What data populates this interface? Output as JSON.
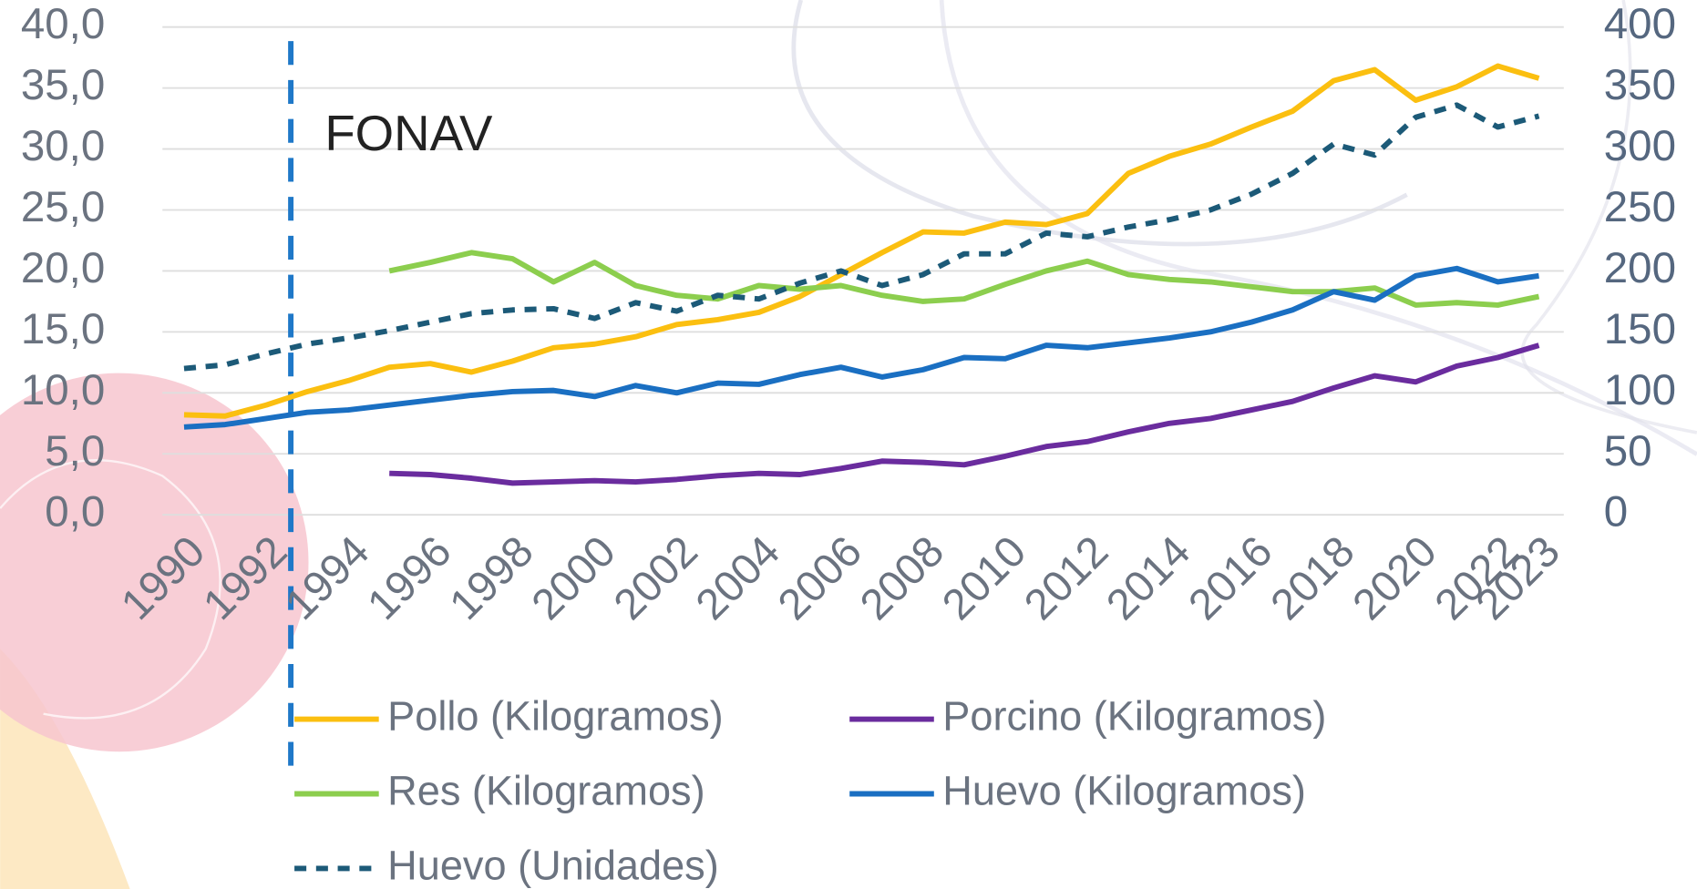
{
  "chart_data": {
    "type": "line",
    "x": [
      1990,
      1991,
      1992,
      1993,
      1994,
      1995,
      1996,
      1997,
      1998,
      1999,
      2000,
      2001,
      2002,
      2003,
      2004,
      2005,
      2006,
      2007,
      2008,
      2009,
      2010,
      2011,
      2012,
      2013,
      2014,
      2015,
      2016,
      2017,
      2018,
      2019,
      2020,
      2021,
      2022,
      2023
    ],
    "xlim": [
      1990,
      2023
    ],
    "xticks": [
      1990,
      1992,
      1994,
      1996,
      1998,
      2000,
      2002,
      2004,
      2006,
      2008,
      2010,
      2012,
      2014,
      2016,
      2018,
      2020,
      2022,
      2023
    ],
    "ylim": [
      0,
      40
    ],
    "yticks": [
      {
        "value": 0,
        "label": "0,0"
      },
      {
        "value": 5,
        "label": "5,0"
      },
      {
        "value": 10,
        "label": "10,0"
      },
      {
        "value": 15,
        "label": "15,0"
      },
      {
        "value": 20,
        "label": "20,0"
      },
      {
        "value": 25,
        "label": "25,0"
      },
      {
        "value": 30,
        "label": "30,0"
      },
      {
        "value": 35,
        "label": "35,0"
      },
      {
        "value": 40,
        "label": "40,0"
      }
    ],
    "y2lim": [
      0,
      400
    ],
    "y2ticks": [
      0,
      50,
      100,
      150,
      200,
      250,
      300,
      350,
      400
    ],
    "grid": true,
    "annotation": {
      "text": "FONAV",
      "x": 1992.6,
      "color": "#1f78c8"
    },
    "series": [
      {
        "name": "Pollo (Kilogramos)",
        "color": "#fbbf10",
        "dash": false,
        "values": [
          8.2,
          8.1,
          9.0,
          10.1,
          11.0,
          12.1,
          12.4,
          11.7,
          12.6,
          13.7,
          14.0,
          14.6,
          15.6,
          16.0,
          16.6,
          17.9,
          19.7,
          21.5,
          23.2,
          23.1,
          24.0,
          23.8,
          24.7,
          28.0,
          29.4,
          30.4,
          31.8,
          33.1,
          35.6,
          36.5,
          34.0,
          35.1,
          36.8,
          35.8
        ]
      },
      {
        "name": "Porcino (Kilogramos)",
        "color": "#6a2c9e",
        "dash": false,
        "values": [
          null,
          null,
          null,
          null,
          null,
          3.4,
          3.3,
          3.0,
          2.6,
          2.7,
          2.8,
          2.7,
          2.9,
          3.2,
          3.4,
          3.3,
          3.8,
          4.4,
          4.3,
          4.1,
          4.8,
          5.6,
          6.0,
          6.8,
          7.5,
          7.9,
          8.6,
          9.3,
          10.4,
          11.4,
          10.9,
          12.2,
          12.9,
          13.9
        ]
      },
      {
        "name": "Res (Kilogramos)",
        "color": "#8cce4e",
        "dash": false,
        "values": [
          null,
          null,
          null,
          null,
          null,
          20.0,
          20.7,
          21.5,
          21.0,
          19.1,
          20.7,
          18.8,
          18.0,
          17.7,
          18.8,
          18.5,
          18.8,
          18.0,
          17.5,
          17.7,
          18.9,
          20.0,
          20.8,
          19.7,
          19.3,
          19.1,
          18.7,
          18.3,
          18.3,
          18.6,
          17.2,
          17.4,
          17.2,
          17.9
        ]
      },
      {
        "name": "Huevo (Kilogramos)",
        "color": "#1a6fc2",
        "dash": false,
        "values": [
          7.2,
          7.4,
          7.9,
          8.4,
          8.6,
          9.0,
          9.4,
          9.8,
          10.1,
          10.2,
          9.7,
          10.6,
          10.0,
          10.8,
          10.7,
          11.5,
          12.1,
          11.3,
          11.9,
          12.9,
          12.8,
          13.9,
          13.7,
          14.1,
          14.5,
          15.0,
          15.8,
          16.8,
          18.3,
          17.6,
          19.6,
          20.2,
          19.1,
          19.6
        ]
      },
      {
        "name": "Huevo (Unidades)",
        "color": "#1c5a78",
        "dash": true,
        "axis": "y2",
        "values": [
          120,
          123,
          132,
          140,
          145,
          151,
          158,
          165,
          168,
          169,
          161,
          174,
          167,
          180,
          177,
          190,
          200,
          188,
          197,
          214,
          214,
          231,
          228,
          236,
          242,
          250,
          263,
          280,
          304,
          295,
          326,
          336,
          318,
          327
        ]
      }
    ]
  }
}
